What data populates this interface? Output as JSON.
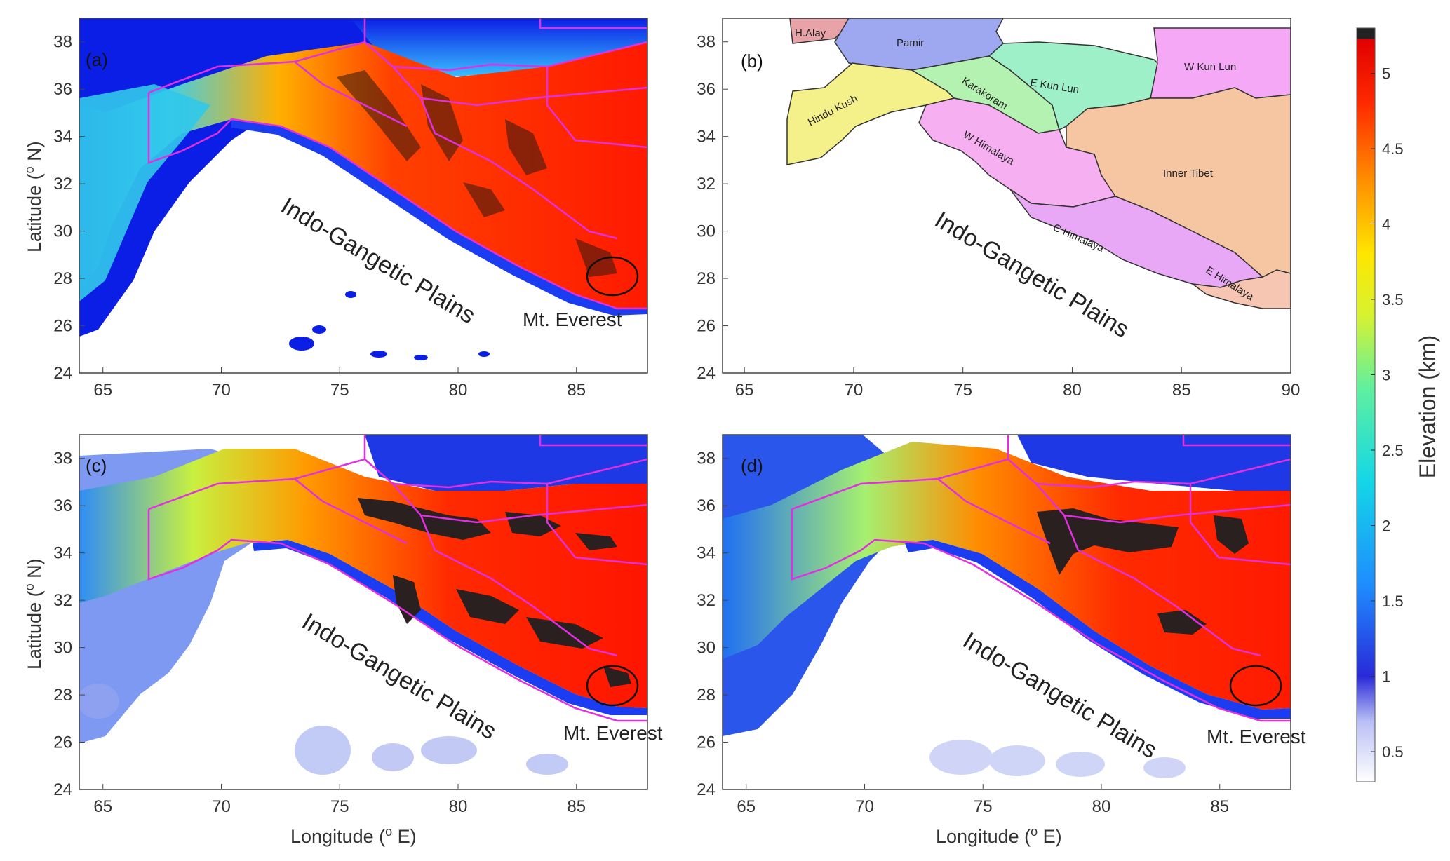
{
  "figure": {
    "xlabel": "Longitude (",
    "xlabel_sup": "o",
    "xlabel_tail": " E)",
    "ylabel": "Latitude (",
    "ylabel_sup": "o",
    "ylabel_tail": " N)"
  },
  "panels": [
    {
      "tag": "(a)",
      "lon_ticks": [
        "65",
        "70",
        "75",
        "80",
        "85"
      ],
      "lat_ticks": [
        "38",
        "36",
        "34",
        "32",
        "30",
        "28",
        "26",
        "24"
      ],
      "igp": "Indo-Gangetic Plains",
      "everest": "Mt. Everest"
    },
    {
      "tag": "(b)",
      "lon_ticks": [
        "65",
        "70",
        "75",
        "80",
        "85",
        "90"
      ],
      "lat_ticks": [
        "38",
        "36",
        "34",
        "32",
        "30",
        "28",
        "26",
        "24"
      ],
      "igp": "Indo-Gangetic Plains"
    },
    {
      "tag": "(c)",
      "lon_ticks": [
        "65",
        "70",
        "75",
        "80",
        "85"
      ],
      "lat_ticks": [
        "38",
        "36",
        "34",
        "32",
        "30",
        "28",
        "26",
        "24"
      ],
      "igp": "Indo-Gangetic Plains",
      "everest": "Mt. Everest"
    },
    {
      "tag": "(d)",
      "lon_ticks": [
        "65",
        "70",
        "75",
        "80",
        "85"
      ],
      "lat_ticks": [
        "38",
        "36",
        "34",
        "32",
        "30",
        "28",
        "26",
        "24"
      ],
      "igp": "Indo-Gangetic Plains",
      "everest": "Mt. Everest"
    }
  ],
  "regions": {
    "h_alay": "H.Alay",
    "pamir": "Pamir",
    "hindu_kush": "Hindu Kush",
    "karakoram": "Karakoram",
    "e_kun_lun": "E Kun Lun",
    "w_kun_lun": "W Kun Lun",
    "w_himalaya": "W Himalaya",
    "inner_tibet": "Inner Tibet",
    "c_himalaya": "C Himalaya",
    "e_himalaya": "E Himalaya"
  },
  "region_colors": {
    "h_alay": "#e8a3a8",
    "pamir": "#9ea8f0",
    "hindu_kush": "#f4f08a",
    "karakoram": "#b3f2b0",
    "e_kun_lun": "#9ef0c8",
    "w_kun_lun": "#f5a8f5",
    "w_himalaya": "#f6b0f2",
    "inner_tibet": "#f6c6a3",
    "c_himalaya": "#e8a8f6",
    "e_himalaya": "#f6c6b3"
  },
  "colorbar": {
    "title": "Elevation (km)",
    "ticks": [
      "5",
      "4.5",
      "4",
      "3.5",
      "3",
      "2.5",
      "2",
      "1.5",
      "1",
      "0.5"
    ],
    "range_km": [
      0.3,
      5.3
    ],
    "colors": [
      "#ffffff",
      "#2222ee",
      "#00c8ff",
      "#60f0a0",
      "#ffff00",
      "#ff8000",
      "#ff1a00",
      "#e00000",
      "#222222"
    ]
  },
  "border_color": "#e030e0"
}
